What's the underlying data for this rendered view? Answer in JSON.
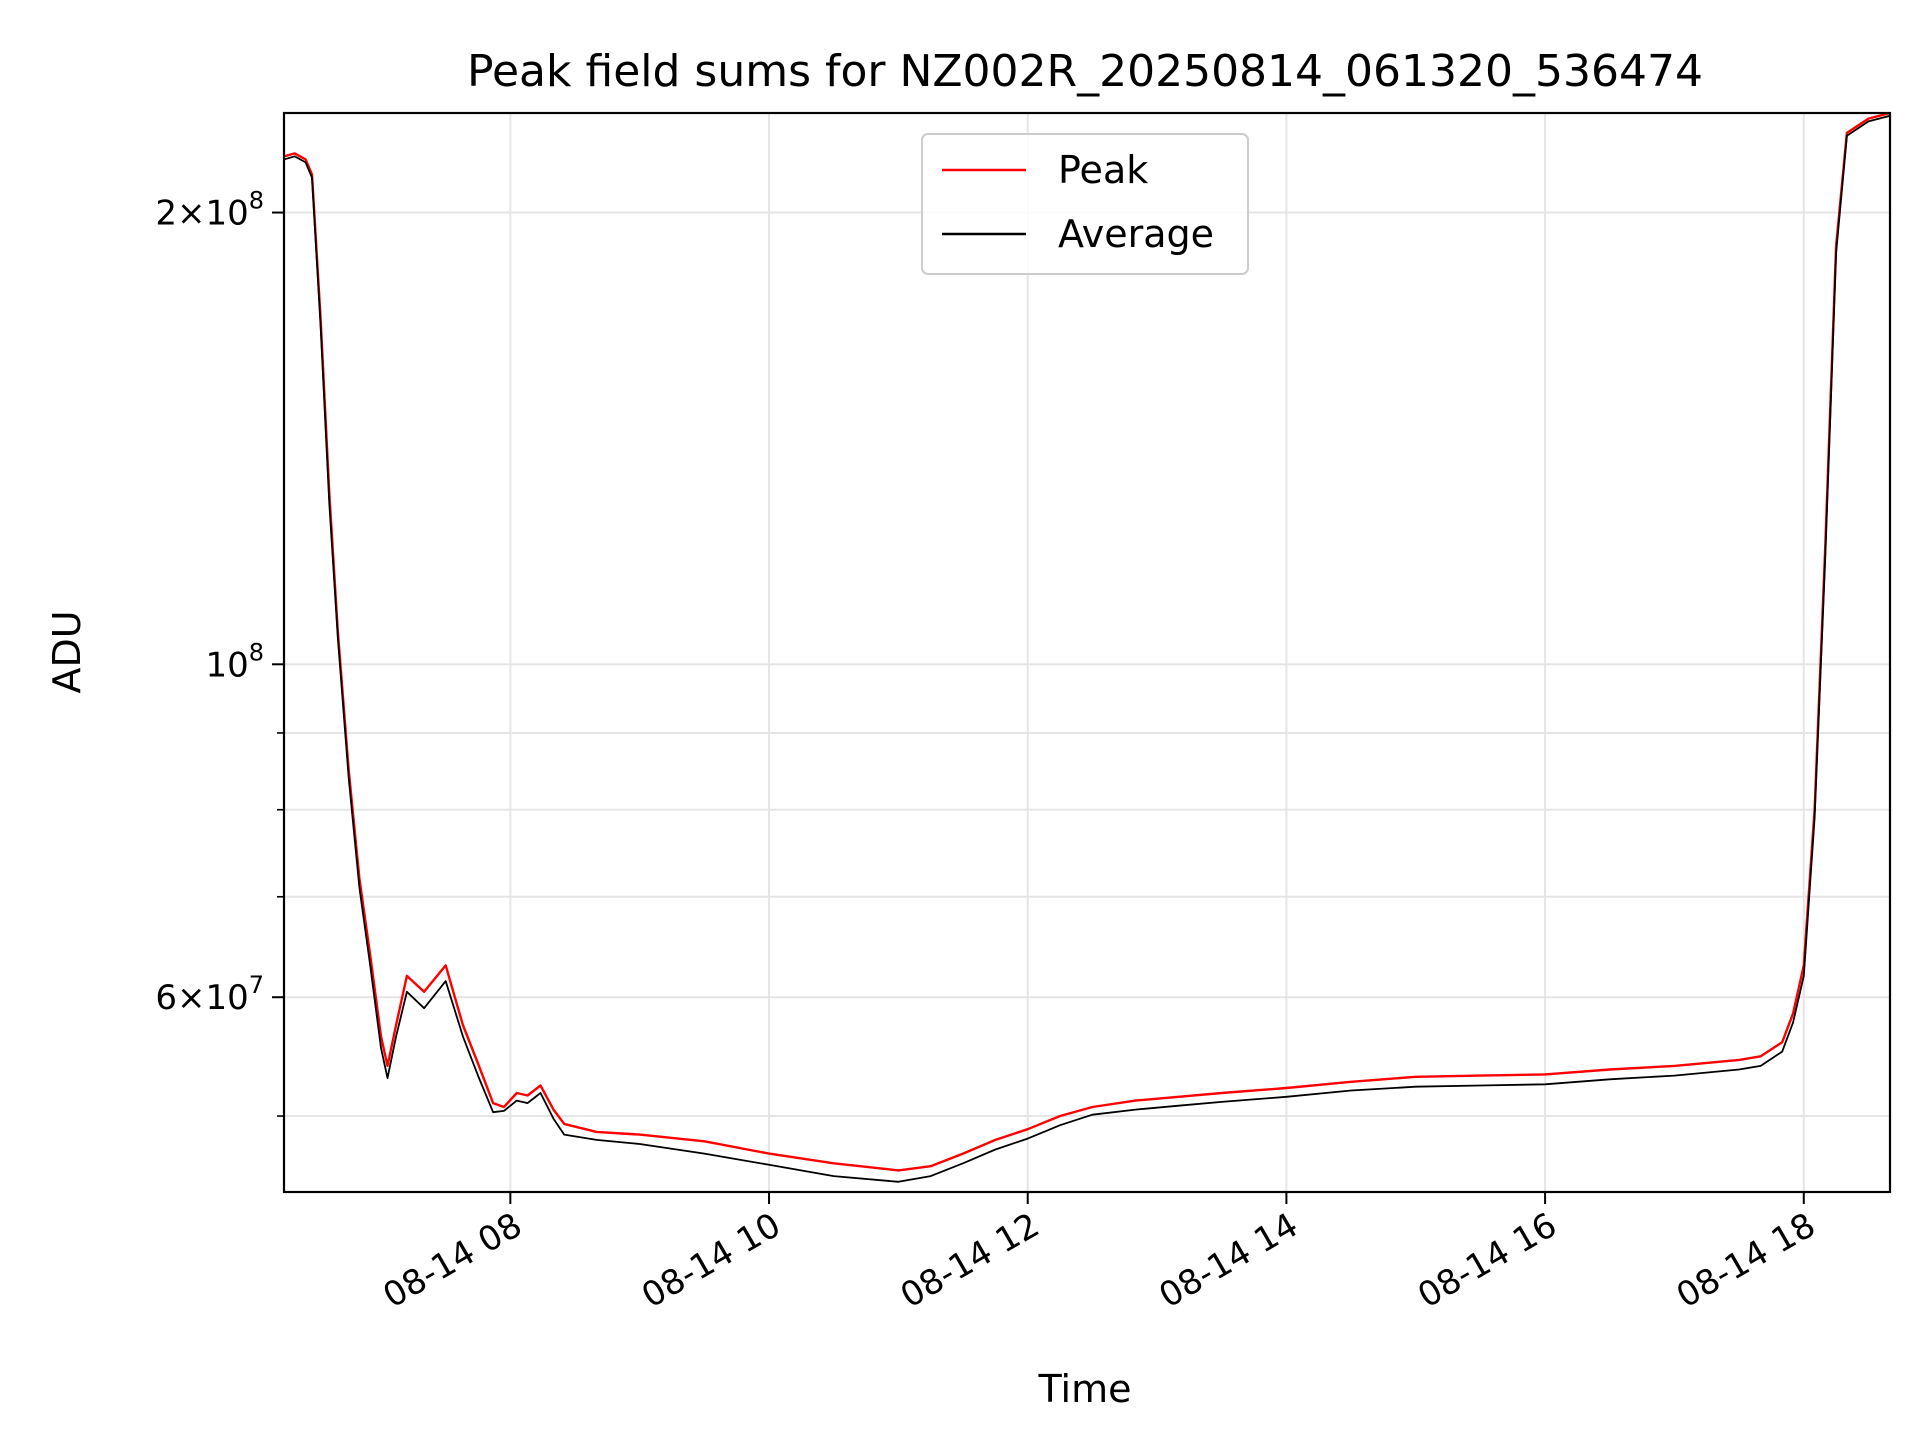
{
  "chart_data": {
    "type": "line",
    "title": "Peak field sums for NZ002R_20250814_061320_536474",
    "xlabel": "Time",
    "ylabel": "ADU",
    "y_scale": "log",
    "ylim": [
      44500000,
      233000000
    ],
    "xlim": [
      "2025-08-14 06:15",
      "2025-08-14 18:40"
    ],
    "grid": true,
    "legend": "upper-center",
    "x_ticks": [
      {
        "x": "2025-08-14 08:00",
        "label": "08-14 08"
      },
      {
        "x": "2025-08-14 10:00",
        "label": "08-14 10"
      },
      {
        "x": "2025-08-14 12:00",
        "label": "08-14 12"
      },
      {
        "x": "2025-08-14 14:00",
        "label": "08-14 14"
      },
      {
        "x": "2025-08-14 16:00",
        "label": "08-14 16"
      },
      {
        "x": "2025-08-14 18:00",
        "label": "08-14 18"
      }
    ],
    "y_major_ticks": [
      {
        "value": 60000000,
        "mantissa": "6",
        "base": "10",
        "exp": "7"
      },
      {
        "value": 100000000,
        "mantissa": "",
        "base": "10",
        "exp": "8"
      },
      {
        "value": 200000000,
        "mantissa": "2",
        "base": "10",
        "exp": "8"
      }
    ],
    "y_minor_ticks": [
      50000000,
      70000000,
      80000000,
      90000000
    ],
    "series": [
      {
        "name": "Peak",
        "color": "#ff0000",
        "points": [
          [
            "2025-08-14 06:15",
            218000000
          ],
          [
            "2025-08-14 06:20",
            219000000
          ],
          [
            "2025-08-14 06:25",
            217000000
          ],
          [
            "2025-08-14 06:28",
            212000000
          ],
          [
            "2025-08-14 06:32",
            170000000
          ],
          [
            "2025-08-14 06:36",
            130000000
          ],
          [
            "2025-08-14 06:40",
            105000000
          ],
          [
            "2025-08-14 06:45",
            85000000
          ],
          [
            "2025-08-14 06:50",
            72000000
          ],
          [
            "2025-08-14 06:55",
            64000000
          ],
          [
            "2025-08-14 07:00",
            56500000
          ],
          [
            "2025-08-14 07:03",
            54000000
          ],
          [
            "2025-08-14 07:07",
            57500000
          ],
          [
            "2025-08-14 07:12",
            62000000
          ],
          [
            "2025-08-14 07:20",
            60500000
          ],
          [
            "2025-08-14 07:30",
            63000000
          ],
          [
            "2025-08-14 07:38",
            57500000
          ],
          [
            "2025-08-14 07:45",
            54200000
          ],
          [
            "2025-08-14 07:52",
            51000000
          ],
          [
            "2025-08-14 07:57",
            50700000
          ],
          [
            "2025-08-14 08:03",
            51800000
          ],
          [
            "2025-08-14 08:08",
            51600000
          ],
          [
            "2025-08-14 08:14",
            52400000
          ],
          [
            "2025-08-14 08:20",
            50500000
          ],
          [
            "2025-08-14 08:25",
            49400000
          ],
          [
            "2025-08-14 08:40",
            48800000
          ],
          [
            "2025-08-14 09:00",
            48600000
          ],
          [
            "2025-08-14 09:30",
            48100000
          ],
          [
            "2025-08-14 10:00",
            47200000
          ],
          [
            "2025-08-14 10:30",
            46500000
          ],
          [
            "2025-08-14 11:00",
            46000000
          ],
          [
            "2025-08-14 11:15",
            46300000
          ],
          [
            "2025-08-14 11:30",
            47200000
          ],
          [
            "2025-08-14 11:45",
            48200000
          ],
          [
            "2025-08-14 12:00",
            49000000
          ],
          [
            "2025-08-14 12:15",
            50000000
          ],
          [
            "2025-08-14 12:30",
            50700000
          ],
          [
            "2025-08-14 12:50",
            51200000
          ],
          [
            "2025-08-14 13:10",
            51500000
          ],
          [
            "2025-08-14 13:30",
            51800000
          ],
          [
            "2025-08-14 14:00",
            52200000
          ],
          [
            "2025-08-14 14:30",
            52700000
          ],
          [
            "2025-08-14 15:00",
            53100000
          ],
          [
            "2025-08-14 15:30",
            53200000
          ],
          [
            "2025-08-14 16:00",
            53300000
          ],
          [
            "2025-08-14 16:30",
            53700000
          ],
          [
            "2025-08-14 17:00",
            54000000
          ],
          [
            "2025-08-14 17:30",
            54500000
          ],
          [
            "2025-08-14 17:40",
            54800000
          ],
          [
            "2025-08-14 17:50",
            56000000
          ],
          [
            "2025-08-14 17:55",
            58500000
          ],
          [
            "2025-08-14 18:00",
            63000000
          ],
          [
            "2025-08-14 18:05",
            80000000
          ],
          [
            "2025-08-14 18:10",
            120000000
          ],
          [
            "2025-08-14 18:15",
            190000000
          ],
          [
            "2025-08-14 18:20",
            226000000
          ],
          [
            "2025-08-14 18:30",
            231000000
          ],
          [
            "2025-08-14 18:40",
            233000000
          ]
        ]
      },
      {
        "name": "Average",
        "color": "#000000",
        "points": [
          [
            "2025-08-14 06:15",
            217000000
          ],
          [
            "2025-08-14 06:20",
            218000000
          ],
          [
            "2025-08-14 06:25",
            216000000
          ],
          [
            "2025-08-14 06:28",
            211000000
          ],
          [
            "2025-08-14 06:32",
            168000000
          ],
          [
            "2025-08-14 06:36",
            128000000
          ],
          [
            "2025-08-14 06:40",
            104000000
          ],
          [
            "2025-08-14 06:45",
            84000000
          ],
          [
            "2025-08-14 06:50",
            71000000
          ],
          [
            "2025-08-14 06:55",
            63000000
          ],
          [
            "2025-08-14 07:00",
            55500000
          ],
          [
            "2025-08-14 07:03",
            53000000
          ],
          [
            "2025-08-14 07:07",
            56500000
          ],
          [
            "2025-08-14 07:12",
            60500000
          ],
          [
            "2025-08-14 07:20",
            59000000
          ],
          [
            "2025-08-14 07:30",
            61500000
          ],
          [
            "2025-08-14 07:38",
            56500000
          ],
          [
            "2025-08-14 07:45",
            53200000
          ],
          [
            "2025-08-14 07:52",
            50300000
          ],
          [
            "2025-08-14 07:57",
            50400000
          ],
          [
            "2025-08-14 08:03",
            51200000
          ],
          [
            "2025-08-14 08:08",
            51000000
          ],
          [
            "2025-08-14 08:14",
            51800000
          ],
          [
            "2025-08-14 08:20",
            49800000
          ],
          [
            "2025-08-14 08:25",
            48600000
          ],
          [
            "2025-08-14 08:40",
            48200000
          ],
          [
            "2025-08-14 09:00",
            47900000
          ],
          [
            "2025-08-14 09:30",
            47200000
          ],
          [
            "2025-08-14 10:00",
            46400000
          ],
          [
            "2025-08-14 10:30",
            45600000
          ],
          [
            "2025-08-14 11:00",
            45200000
          ],
          [
            "2025-08-14 11:15",
            45600000
          ],
          [
            "2025-08-14 11:30",
            46500000
          ],
          [
            "2025-08-14 11:45",
            47500000
          ],
          [
            "2025-08-14 12:00",
            48300000
          ],
          [
            "2025-08-14 12:15",
            49300000
          ],
          [
            "2025-08-14 12:30",
            50100000
          ],
          [
            "2025-08-14 12:50",
            50500000
          ],
          [
            "2025-08-14 13:10",
            50800000
          ],
          [
            "2025-08-14 13:30",
            51100000
          ],
          [
            "2025-08-14 14:00",
            51500000
          ],
          [
            "2025-08-14 14:30",
            52000000
          ],
          [
            "2025-08-14 15:00",
            52300000
          ],
          [
            "2025-08-14 15:30",
            52400000
          ],
          [
            "2025-08-14 16:00",
            52500000
          ],
          [
            "2025-08-14 16:30",
            52900000
          ],
          [
            "2025-08-14 17:00",
            53200000
          ],
          [
            "2025-08-14 17:30",
            53700000
          ],
          [
            "2025-08-14 17:40",
            54000000
          ],
          [
            "2025-08-14 17:50",
            55200000
          ],
          [
            "2025-08-14 17:55",
            57700000
          ],
          [
            "2025-08-14 18:00",
            62000000
          ],
          [
            "2025-08-14 18:05",
            79000000
          ],
          [
            "2025-08-14 18:10",
            118000000
          ],
          [
            "2025-08-14 18:15",
            188000000
          ],
          [
            "2025-08-14 18:20",
            225000000
          ],
          [
            "2025-08-14 18:30",
            230000000
          ],
          [
            "2025-08-14 18:40",
            232000000
          ]
        ]
      }
    ]
  }
}
